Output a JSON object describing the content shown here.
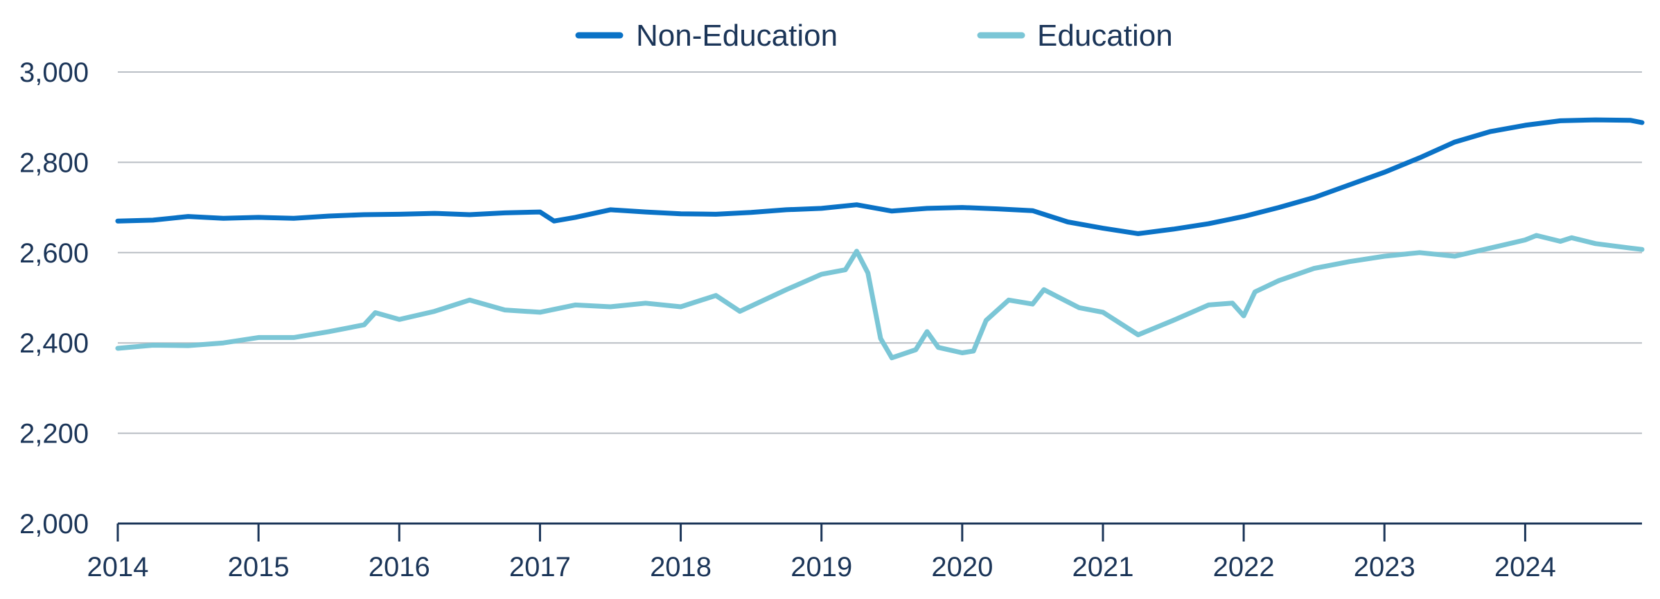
{
  "chart_data": {
    "type": "line",
    "title": "",
    "xlabel": "",
    "ylabel": "",
    "xlim": [
      2014.0,
      2024.83
    ],
    "ylim": [
      2000,
      3000
    ],
    "yticks": [
      2000,
      2200,
      2400,
      2600,
      2800,
      3000
    ],
    "ytick_labels": [
      "2,000",
      "2,200",
      "2,400",
      "2,600",
      "2,800",
      "3,000"
    ],
    "xticks": [
      2014,
      2015,
      2016,
      2017,
      2018,
      2019,
      2020,
      2021,
      2022,
      2023,
      2024
    ],
    "xtick_labels": [
      "2014",
      "2015",
      "2016",
      "2017",
      "2018",
      "2019",
      "2020",
      "2021",
      "2022",
      "2023",
      "2024"
    ],
    "grid": "horizontal",
    "legend_position": "top-center",
    "series": [
      {
        "name": "Non-Education",
        "color": "#0a72c6",
        "points": [
          [
            2014.0,
            2670
          ],
          [
            2014.25,
            2672
          ],
          [
            2014.5,
            2680
          ],
          [
            2014.75,
            2676
          ],
          [
            2015.0,
            2678
          ],
          [
            2015.25,
            2676
          ],
          [
            2015.5,
            2681
          ],
          [
            2015.75,
            2684
          ],
          [
            2016.0,
            2685
          ],
          [
            2016.25,
            2687
          ],
          [
            2016.5,
            2684
          ],
          [
            2016.75,
            2688
          ],
          [
            2017.0,
            2690
          ],
          [
            2017.1,
            2670
          ],
          [
            2017.25,
            2678
          ],
          [
            2017.5,
            2695
          ],
          [
            2017.75,
            2690
          ],
          [
            2018.0,
            2686
          ],
          [
            2018.25,
            2685
          ],
          [
            2018.5,
            2689
          ],
          [
            2018.75,
            2695
          ],
          [
            2019.0,
            2698
          ],
          [
            2019.25,
            2706
          ],
          [
            2019.5,
            2692
          ],
          [
            2019.75,
            2698
          ],
          [
            2020.0,
            2700
          ],
          [
            2020.25,
            2697
          ],
          [
            2020.5,
            2693
          ],
          [
            2020.75,
            2668
          ],
          [
            2021.0,
            2654
          ],
          [
            2021.25,
            2642
          ],
          [
            2021.5,
            2652
          ],
          [
            2021.75,
            2664
          ],
          [
            2022.0,
            2680
          ],
          [
            2022.25,
            2700
          ],
          [
            2022.5,
            2722
          ],
          [
            2022.75,
            2750
          ],
          [
            2023.0,
            2778
          ],
          [
            2023.25,
            2810
          ],
          [
            2023.5,
            2845
          ],
          [
            2023.75,
            2868
          ],
          [
            2024.0,
            2882
          ],
          [
            2024.25,
            2892
          ],
          [
            2024.5,
            2894
          ],
          [
            2024.75,
            2893
          ],
          [
            2024.83,
            2888
          ]
        ]
      },
      {
        "name": "Education",
        "color": "#7bc6d6",
        "points": [
          [
            2014.0,
            2388
          ],
          [
            2014.25,
            2395
          ],
          [
            2014.5,
            2394
          ],
          [
            2014.75,
            2400
          ],
          [
            2015.0,
            2412
          ],
          [
            2015.25,
            2412
          ],
          [
            2015.5,
            2425
          ],
          [
            2015.75,
            2440
          ],
          [
            2015.83,
            2467
          ],
          [
            2016.0,
            2452
          ],
          [
            2016.25,
            2470
          ],
          [
            2016.5,
            2495
          ],
          [
            2016.75,
            2473
          ],
          [
            2017.0,
            2468
          ],
          [
            2017.25,
            2484
          ],
          [
            2017.5,
            2480
          ],
          [
            2017.75,
            2488
          ],
          [
            2018.0,
            2480
          ],
          [
            2018.25,
            2505
          ],
          [
            2018.42,
            2470
          ],
          [
            2018.75,
            2518
          ],
          [
            2019.0,
            2552
          ],
          [
            2019.17,
            2562
          ],
          [
            2019.25,
            2603
          ],
          [
            2019.33,
            2555
          ],
          [
            2019.42,
            2410
          ],
          [
            2019.5,
            2367
          ],
          [
            2019.67,
            2385
          ],
          [
            2019.75,
            2425
          ],
          [
            2019.83,
            2390
          ],
          [
            2020.0,
            2378
          ],
          [
            2020.08,
            2382
          ],
          [
            2020.17,
            2450
          ],
          [
            2020.33,
            2495
          ],
          [
            2020.5,
            2486
          ],
          [
            2020.58,
            2518
          ],
          [
            2020.83,
            2478
          ],
          [
            2021.0,
            2468
          ],
          [
            2021.25,
            2418
          ],
          [
            2021.5,
            2450
          ],
          [
            2021.75,
            2484
          ],
          [
            2021.92,
            2488
          ],
          [
            2022.0,
            2460
          ],
          [
            2022.08,
            2513
          ],
          [
            2022.25,
            2538
          ],
          [
            2022.5,
            2565
          ],
          [
            2022.75,
            2580
          ],
          [
            2023.0,
            2592
          ],
          [
            2023.25,
            2600
          ],
          [
            2023.5,
            2592
          ],
          [
            2023.75,
            2610
          ],
          [
            2024.0,
            2628
          ],
          [
            2024.08,
            2638
          ],
          [
            2024.25,
            2625
          ],
          [
            2024.33,
            2633
          ],
          [
            2024.5,
            2620
          ],
          [
            2024.75,
            2610
          ],
          [
            2024.83,
            2607
          ]
        ]
      }
    ]
  }
}
